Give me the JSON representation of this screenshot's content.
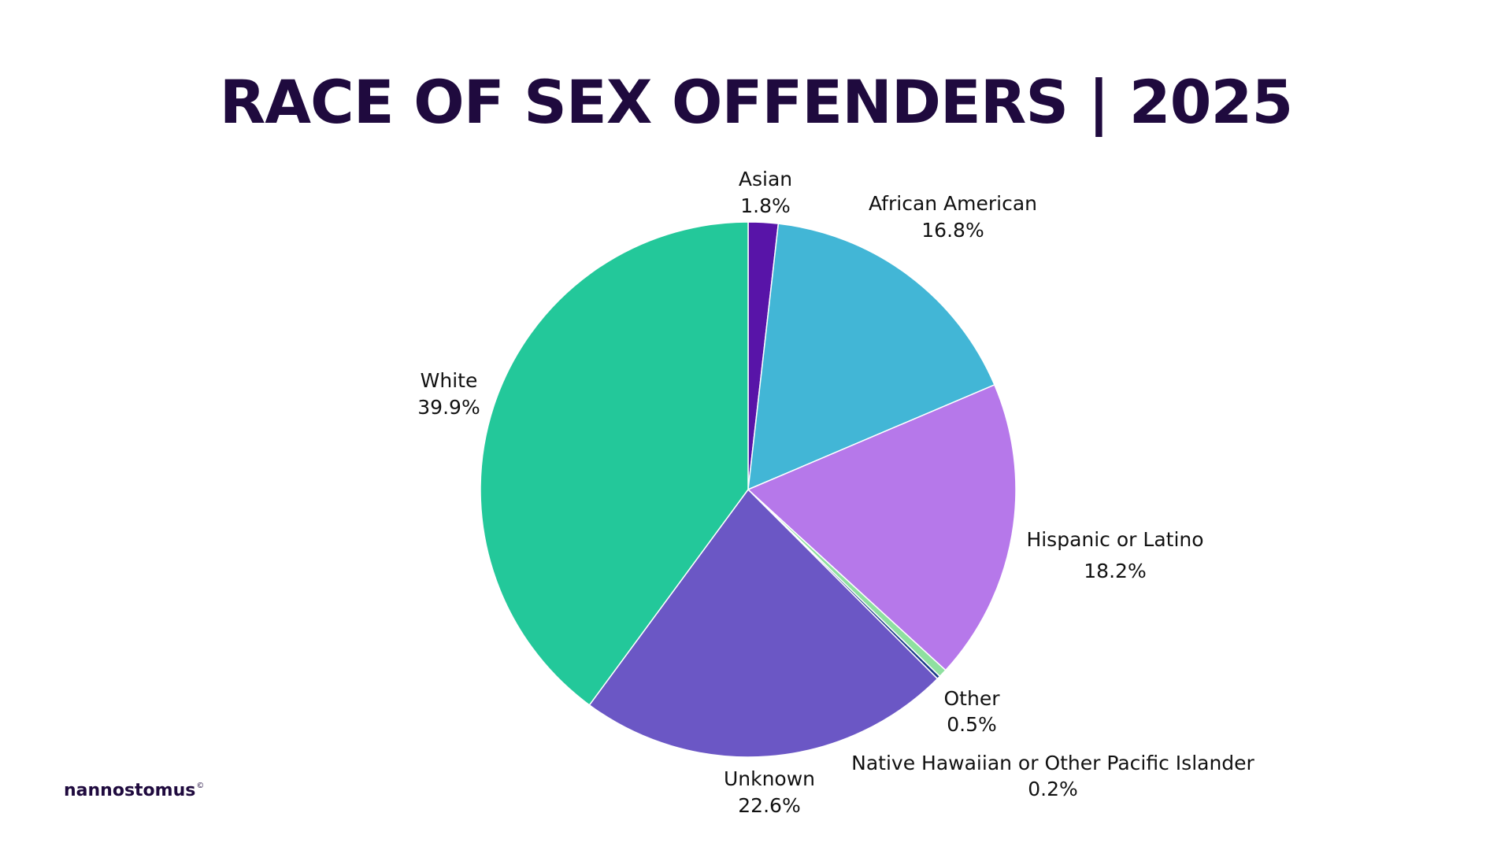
{
  "chart_data": {
    "type": "pie",
    "title": "RACE OF SEX OFFENDERS | 2025",
    "slices": [
      {
        "label": "Asian",
        "value": 1.8,
        "display": "1.8%",
        "color": "#5814a8"
      },
      {
        "label": "African American",
        "value": 16.8,
        "display": "16.8%",
        "color": "#42b6d6"
      },
      {
        "label": "Hispanic or Latino",
        "value": 18.2,
        "display": "18.2%",
        "color": "#b678ea"
      },
      {
        "label": "Other",
        "value": 0.5,
        "display": "0.5%",
        "color": "#8fe0a0"
      },
      {
        "label": "Native Hawaiian or Other Pacific Islander",
        "value": 0.2,
        "display": "0.2%",
        "color": "#1b3a8a"
      },
      {
        "label": "Unknown",
        "value": 22.6,
        "display": "22.6%",
        "color": "#6b57c5"
      },
      {
        "label": "White",
        "value": 39.9,
        "display": "39.9%",
        "color": "#23c89a"
      }
    ],
    "start_angle_deg": 0,
    "direction": "clockwise",
    "legend": "none"
  },
  "brand": {
    "name": "nannostomus",
    "mark": "©"
  }
}
